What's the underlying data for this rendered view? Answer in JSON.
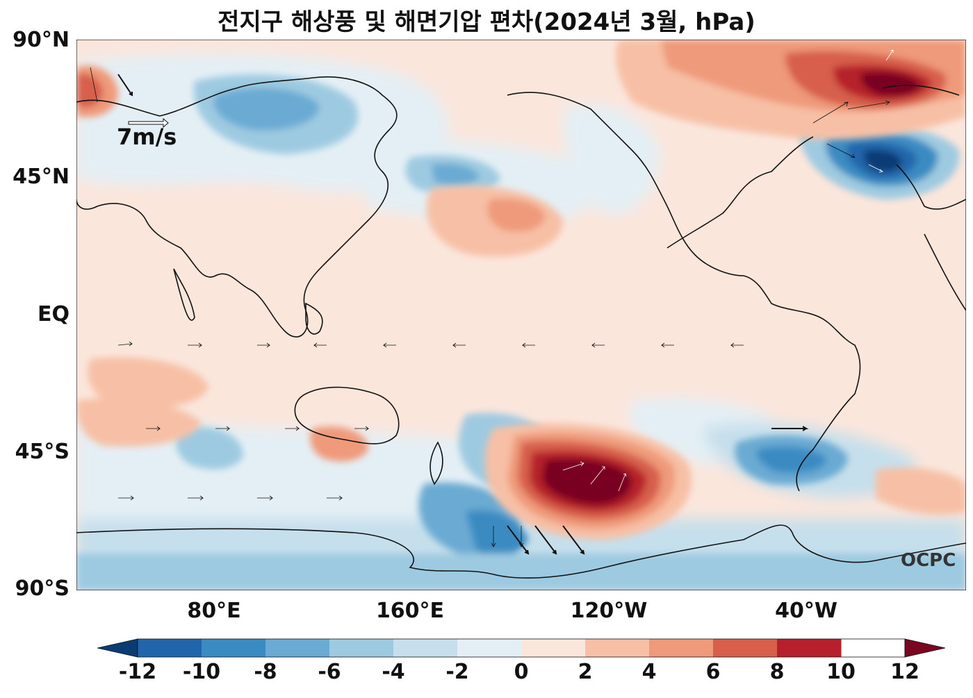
{
  "title": "전지구 해상풍 및 해면기압 편차(2024년 3월, hPa)",
  "lat_labels": [
    "90°N",
    "45°N",
    "EQ",
    "45°S",
    "90°S"
  ],
  "lon_labels": [
    "80°E",
    "160°E",
    "120°W",
    "40°W"
  ],
  "reference_vector": "7m/s",
  "watermark": "OCPC",
  "colorbar": {
    "ticks": [
      "-12",
      "-10",
      "-8",
      "-6",
      "-4",
      "-2",
      "0",
      "2",
      "4",
      "6",
      "8",
      "10",
      "12"
    ],
    "colors": [
      "#0b3b73",
      "#2166ac",
      "#3a8bc2",
      "#6aaad3",
      "#9ecae1",
      "#c6dfec",
      "#e4eff5",
      "#fbe6dc",
      "#f7c0a6",
      "#ef9a7a",
      "#d75f4c",
      "#b6202c",
      "#7a0622"
    ]
  },
  "map_colors": {
    "ocean_neutral": "#fbe6dc",
    "coast": "#111111"
  }
}
